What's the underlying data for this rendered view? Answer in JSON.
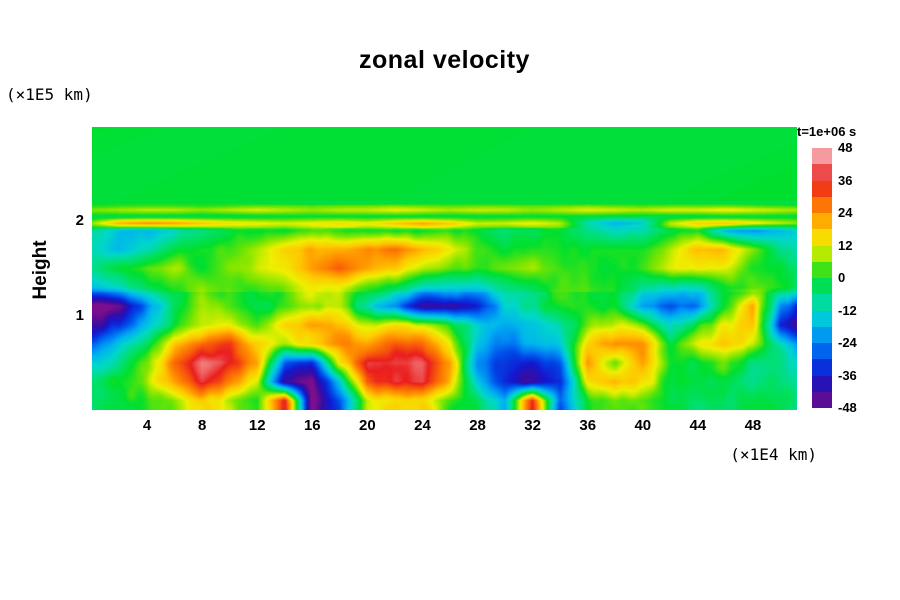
{
  "title": "zonal velocity",
  "axes": {
    "y_label": "Height",
    "y_unit_label": "(×1E5 km)",
    "x_unit_label": "(×1E4 km)",
    "x_ticks": [
      4,
      8,
      12,
      16,
      20,
      24,
      28,
      32,
      36,
      40,
      44,
      48
    ],
    "y_ticks": [
      1,
      2
    ]
  },
  "colorbar": {
    "label": "t=1e+06 s",
    "ticks": [
      48,
      36,
      24,
      12,
      0,
      -12,
      -24,
      -36,
      -48
    ],
    "min": -48,
    "max": 48,
    "stops": [
      {
        "v": -48,
        "c": "#7C0E8E"
      },
      {
        "v": -42,
        "c": "#3A0D9E"
      },
      {
        "v": -36,
        "c": "#1418CF"
      },
      {
        "v": -30,
        "c": "#0048E8"
      },
      {
        "v": -24,
        "c": "#0080F5"
      },
      {
        "v": -18,
        "c": "#00B6EE"
      },
      {
        "v": -12,
        "c": "#00D8C8"
      },
      {
        "v": -6,
        "c": "#00DF7A"
      },
      {
        "v": 0,
        "c": "#00DF2E"
      },
      {
        "v": 6,
        "c": "#7CE600"
      },
      {
        "v": 12,
        "c": "#EEF000"
      },
      {
        "v": 18,
        "c": "#FFC800"
      },
      {
        "v": 24,
        "c": "#FF9000"
      },
      {
        "v": 30,
        "c": "#F95A0A"
      },
      {
        "v": 36,
        "c": "#EA1E1E"
      },
      {
        "v": 42,
        "c": "#F17878"
      },
      {
        "v": 48,
        "c": "#F9BEC9"
      }
    ]
  },
  "chart_data": {
    "type": "heatmap",
    "title": "zonal velocity",
    "xlabel": "(×1E4 km)",
    "ylabel": "Height (×1E5 km)",
    "time_annotation": "t=1e+06 s",
    "x_range": [
      0,
      51.2
    ],
    "y_range": [
      0,
      3.0
    ],
    "value_range": [
      -48,
      48
    ],
    "x": [
      0,
      2,
      4,
      6,
      8,
      10,
      12,
      14,
      16,
      18,
      20,
      22,
      24,
      26,
      28,
      30,
      32,
      34,
      36,
      38,
      40,
      42,
      44,
      46,
      48,
      50,
      52
    ],
    "heights": [
      3.0,
      2.5,
      2.2,
      2.12,
      2.05,
      1.98,
      1.9,
      1.7,
      1.5,
      1.3,
      1.1,
      0.9,
      0.7,
      0.5,
      0.3,
      0.1
    ],
    "values": [
      [
        0,
        0,
        0,
        0,
        0,
        0,
        0,
        0,
        0,
        0,
        0,
        0,
        0,
        0,
        0,
        0,
        0,
        0,
        0,
        0,
        0,
        0,
        0,
        0,
        0,
        0,
        0
      ],
      [
        0,
        0,
        0,
        0,
        0,
        0,
        0,
        0,
        0,
        0,
        0,
        0,
        0,
        0,
        0,
        0,
        0,
        0,
        0,
        0,
        0,
        0,
        0,
        0,
        0,
        0,
        0
      ],
      [
        0,
        0,
        0,
        0,
        0,
        0,
        0,
        0,
        0,
        0,
        0,
        0,
        0,
        0,
        0,
        0,
        0,
        0,
        0,
        0,
        0,
        0,
        0,
        0,
        0,
        0,
        0
      ],
      [
        8,
        10,
        12,
        12,
        10,
        12,
        14,
        12,
        10,
        12,
        12,
        14,
        12,
        10,
        12,
        12,
        10,
        12,
        14,
        12,
        10,
        12,
        12,
        14,
        12,
        10,
        8
      ],
      [
        0,
        0,
        0,
        0,
        0,
        0,
        0,
        0,
        0,
        0,
        0,
        0,
        0,
        0,
        0,
        0,
        0,
        0,
        0,
        0,
        0,
        0,
        0,
        0,
        0,
        0,
        0
      ],
      [
        8,
        22,
        26,
        24,
        20,
        16,
        14,
        12,
        14,
        16,
        14,
        20,
        24,
        20,
        12,
        12,
        14,
        10,
        -10,
        -18,
        -14,
        10,
        18,
        20,
        16,
        12,
        8
      ],
      [
        -4,
        -10,
        -12,
        -8,
        -2,
        2,
        4,
        2,
        6,
        8,
        4,
        2,
        6,
        4,
        2,
        0,
        2,
        4,
        -4,
        -8,
        -4,
        2,
        4,
        -12,
        -20,
        -16,
        -8
      ],
      [
        -8,
        -12,
        -6,
        0,
        6,
        8,
        12,
        20,
        26,
        24,
        28,
        30,
        24,
        18,
        8,
        4,
        8,
        6,
        2,
        4,
        6,
        12,
        24,
        22,
        10,
        -4,
        -10
      ],
      [
        -4,
        2,
        8,
        10,
        6,
        10,
        14,
        18,
        28,
        32,
        26,
        20,
        14,
        10,
        6,
        8,
        12,
        8,
        4,
        2,
        8,
        14,
        18,
        12,
        6,
        2,
        -2
      ],
      [
        -12,
        -8,
        0,
        6,
        10,
        8,
        6,
        10,
        16,
        14,
        8,
        2,
        -6,
        -10,
        -8,
        -4,
        2,
        6,
        8,
        4,
        -2,
        -8,
        -6,
        2,
        8,
        4,
        -4
      ],
      [
        -44,
        -40,
        -20,
        4,
        12,
        10,
        2,
        8,
        12,
        10,
        -4,
        -16,
        -34,
        -40,
        -28,
        -10,
        0,
        6,
        10,
        6,
        -14,
        -24,
        -18,
        6,
        26,
        -20,
        -36
      ],
      [
        -36,
        -30,
        -12,
        10,
        18,
        16,
        10,
        22,
        28,
        24,
        16,
        20,
        18,
        8,
        -8,
        -14,
        -12,
        -6,
        10,
        18,
        12,
        -6,
        10,
        20,
        24,
        -30,
        -44
      ],
      [
        -20,
        -14,
        0,
        28,
        38,
        36,
        24,
        16,
        24,
        28,
        30,
        36,
        34,
        20,
        -12,
        -18,
        -16,
        -10,
        20,
        32,
        28,
        8,
        20,
        26,
        18,
        -8,
        -20
      ],
      [
        -8,
        -4,
        10,
        36,
        46,
        44,
        28,
        -18,
        -24,
        16,
        42,
        48,
        46,
        28,
        -16,
        -24,
        -30,
        -22,
        26,
        12,
        28,
        10,
        6,
        10,
        4,
        -2,
        -8
      ],
      [
        0,
        4,
        12,
        30,
        40,
        36,
        16,
        -34,
        -40,
        -10,
        36,
        46,
        44,
        24,
        -10,
        -26,
        -36,
        -28,
        16,
        26,
        20,
        8,
        4,
        6,
        2,
        0,
        -4
      ],
      [
        4,
        8,
        10,
        16,
        22,
        18,
        6,
        42,
        -44,
        -20,
        14,
        24,
        20,
        10,
        0,
        -10,
        40,
        -20,
        6,
        10,
        8,
        4,
        2,
        4,
        2,
        0,
        -2
      ]
    ],
    "render_hints": {
      "noise_amp_upper": 1.5,
      "noise_amp_stripes": 3,
      "noise_amp_mid": 5,
      "noise_amp_lower": 8
    }
  }
}
